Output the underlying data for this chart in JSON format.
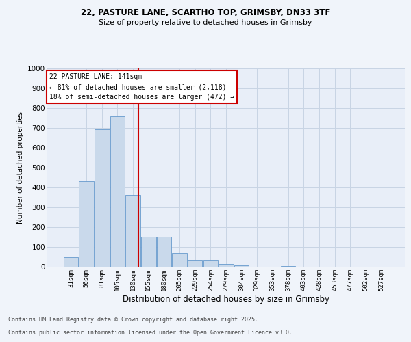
{
  "title1": "22, PASTURE LANE, SCARTHO TOP, GRIMSBY, DN33 3TF",
  "title2": "Size of property relative to detached houses in Grimsby",
  "xlabel": "Distribution of detached houses by size in Grimsby",
  "ylabel": "Number of detached properties",
  "categories": [
    "31sqm",
    "56sqm",
    "81sqm",
    "105sqm",
    "130sqm",
    "155sqm",
    "180sqm",
    "205sqm",
    "229sqm",
    "254sqm",
    "279sqm",
    "304sqm",
    "329sqm",
    "353sqm",
    "378sqm",
    "403sqm",
    "428sqm",
    "453sqm",
    "477sqm",
    "502sqm",
    "527sqm"
  ],
  "values": [
    50,
    430,
    693,
    757,
    362,
    153,
    153,
    70,
    35,
    35,
    15,
    8,
    0,
    0,
    5,
    0,
    0,
    0,
    0,
    0,
    0
  ],
  "bar_color": "#c9d9eb",
  "bar_edge_color": "#6699cc",
  "grid_color": "#c8d4e4",
  "bg_color": "#e8eef8",
  "fig_bg_color": "#f0f4fa",
  "vline_color": "#cc0000",
  "vline_pos": 4.37,
  "annotation_text": "22 PASTURE LANE: 141sqm\n← 81% of detached houses are smaller (2,118)\n18% of semi-detached houses are larger (472) →",
  "annotation_box_color": "#cc0000",
  "footnote1": "Contains HM Land Registry data © Crown copyright and database right 2025.",
  "footnote2": "Contains public sector information licensed under the Open Government Licence v3.0.",
  "ylim": [
    0,
    1000
  ],
  "yticks": [
    0,
    100,
    200,
    300,
    400,
    500,
    600,
    700,
    800,
    900,
    1000
  ]
}
